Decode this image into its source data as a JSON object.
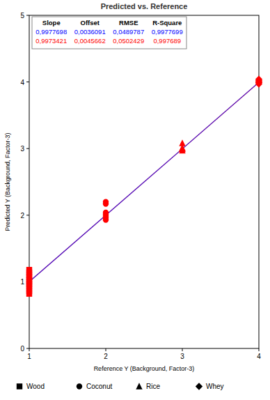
{
  "chart_data": {
    "type": "scatter",
    "title": "Predicted vs. Reference",
    "x_label": "Reference Y (Background, Factor-3)",
    "y_label": "Predicted Y (Background, Factor-3)",
    "xlim": [
      1,
      4
    ],
    "xticks": [
      1,
      2,
      3,
      4
    ],
    "ylim": [
      0,
      5
    ],
    "yticks": [
      0,
      1,
      2,
      3,
      4,
      5
    ],
    "grid": false,
    "legend": "bottom",
    "stats": {
      "columns": [
        "Slope",
        "Offset",
        "RMSE",
        "R-Square"
      ],
      "rows": [
        {
          "color": "#0000ff",
          "values": [
            0.9977698,
            0.0036091,
            0.0489787,
            0.9977699
          ],
          "value_labels": [
            "0,9977698",
            "0,0036091",
            "0,0489787",
            "0,9977699"
          ]
        },
        {
          "color": "#ff0000",
          "values": [
            0.9973421,
            0.0045662,
            0.0502429,
            0.997689
          ],
          "value_labels": [
            "0,9973421",
            "0,0045662",
            "0,0502429",
            "0,997689"
          ]
        }
      ]
    },
    "series": [
      {
        "name": "Wood",
        "color": "#ff0000",
        "marker": "square",
        "x": [
          1,
          1,
          1,
          1,
          1,
          1,
          1,
          1,
          1,
          1,
          1
        ],
        "values": [
          0.82,
          0.86,
          0.9,
          0.94,
          0.97,
          1.0,
          1.03,
          1.07,
          1.1,
          1.14,
          1.18
        ]
      },
      {
        "name": "Coconut",
        "color": "#ff0000",
        "marker": "circle",
        "x": [
          2,
          2,
          2,
          2,
          2,
          2,
          2,
          2
        ],
        "values": [
          1.93,
          1.96,
          1.98,
          2.0,
          2.02,
          2.04,
          2.17,
          2.2
        ]
      },
      {
        "name": "Rice",
        "color": "#ff0000",
        "marker": "triangle",
        "x": [
          3,
          3,
          3,
          3,
          3
        ],
        "values": [
          2.97,
          2.99,
          3.0,
          3.01,
          3.08
        ]
      },
      {
        "name": "Whey",
        "color": "#ff0000",
        "marker": "diamond",
        "x": [
          4,
          4,
          4,
          4,
          4
        ],
        "values": [
          3.97,
          3.99,
          4.0,
          4.02,
          4.04
        ]
      }
    ]
  }
}
